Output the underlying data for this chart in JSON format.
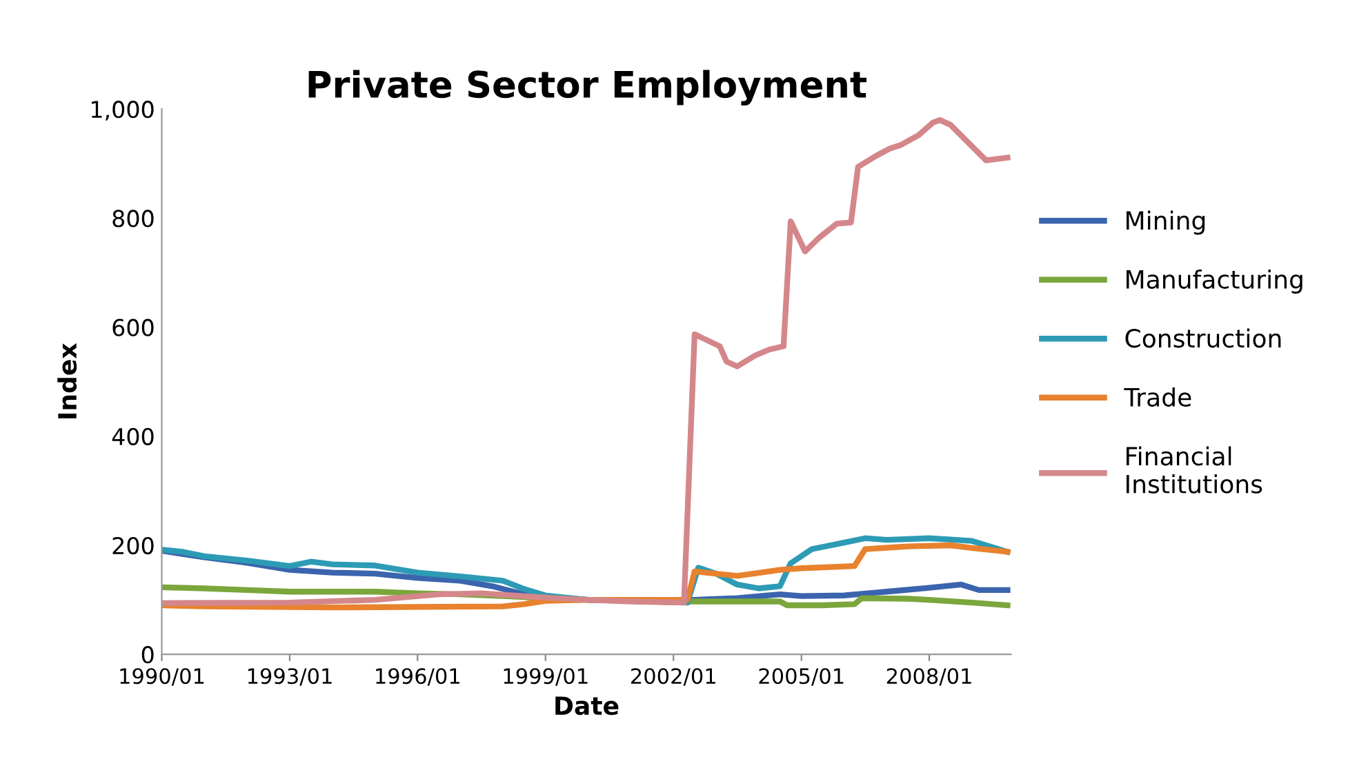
{
  "chart_data": {
    "type": "line",
    "title": "Private Sector Employment",
    "xlabel": "Date",
    "ylabel": "Index",
    "xlim": [
      "1990-01",
      "2009-12"
    ],
    "xticks": [
      {
        "value": "1990-01",
        "label": "1990/01"
      },
      {
        "value": "1993-01",
        "label": "1993/01"
      },
      {
        "value": "1996-01",
        "label": "1996/01"
      },
      {
        "value": "1999-01",
        "label": "1999/01"
      },
      {
        "value": "2002-01",
        "label": "2002/01"
      },
      {
        "value": "2005-01",
        "label": "2005/01"
      },
      {
        "value": "2008-01",
        "label": "2008/01"
      }
    ],
    "ylim": [
      0,
      1000
    ],
    "yticks": [
      0,
      200,
      400,
      600,
      800,
      {
        "value": 1000,
        "label": "1,000"
      }
    ],
    "grid": false,
    "legend": "right",
    "marker": "none",
    "line_style": "solid",
    "series": [
      {
        "name": "Mining",
        "color": "#3a64ad",
        "x": [
          "1990-01",
          "1991-01",
          "1992-01",
          "1993-01",
          "1994-01",
          "1995-01",
          "1996-01",
          "1997-01",
          "1997-10",
          "1998-07",
          "1999-01",
          "2000-01",
          "2002-07",
          "2003-07",
          "2004-07",
          "2005-01",
          "2006-01",
          "2007-01",
          "2008-01",
          "2008-10",
          "2009-03",
          "2009-11"
        ],
        "values": [
          190,
          178,
          168,
          155,
          150,
          148,
          140,
          135,
          125,
          110,
          105,
          100,
          100,
          103,
          110,
          107,
          108,
          115,
          122,
          128,
          118,
          118
        ]
      },
      {
        "name": "Manufacturing",
        "color": "#7aa63c",
        "x": [
          "1990-01",
          "1991-01",
          "1992-01",
          "1993-01",
          "1994-01",
          "1995-01",
          "1996-01",
          "1997-01",
          "1998-01",
          "1999-01",
          "2000-01",
          "2002-01",
          "2004-07",
          "2004-09",
          "2005-07",
          "2006-04",
          "2006-06",
          "2007-07",
          "2008-01",
          "2009-01",
          "2009-11"
        ],
        "values": [
          123,
          121,
          118,
          115,
          115,
          115,
          112,
          110,
          107,
          103,
          100,
          97,
          97,
          90,
          90,
          92,
          103,
          102,
          100,
          95,
          90
        ]
      },
      {
        "name": "Construction",
        "color": "#2d9bb5",
        "x": [
          "1990-01",
          "1990-07",
          "1991-01",
          "1992-01",
          "1993-01",
          "1993-07",
          "1994-01",
          "1995-01",
          "1996-01",
          "1997-01",
          "1998-01",
          "1998-07",
          "1999-01",
          "2000-01",
          "2002-05",
          "2002-08",
          "2003-01",
          "2003-07",
          "2004-01",
          "2004-07",
          "2004-10",
          "2005-04",
          "2006-01",
          "2006-07",
          "2007-01",
          "2008-01",
          "2009-01",
          "2009-11"
        ],
        "values": [
          192,
          188,
          180,
          172,
          162,
          170,
          165,
          163,
          150,
          143,
          135,
          120,
          108,
          100,
          95,
          159,
          148,
          128,
          121,
          125,
          167,
          193,
          205,
          213,
          210,
          213,
          208,
          188
        ]
      },
      {
        "name": "Trade",
        "color": "#e8822e",
        "x": [
          "1990-01",
          "1991-01",
          "1994-01",
          "1998-01",
          "1998-07",
          "1999-01",
          "2000-01",
          "2002-05",
          "2002-07",
          "2003-07",
          "2004-07",
          "2005-01",
          "2006-04",
          "2006-07",
          "2007-07",
          "2008-07",
          "2009-01",
          "2009-11"
        ],
        "values": [
          90,
          88,
          86,
          88,
          92,
          98,
          100,
          100,
          152,
          144,
          155,
          158,
          162,
          193,
          198,
          200,
          195,
          188
        ]
      },
      {
        "name": "Financial Institutions",
        "color": "#d4878a",
        "x": [
          "1990-01",
          "1993-01",
          "1995-01",
          "1996-07",
          "1997-07",
          "1999-01",
          "2000-01",
          "2001-01",
          "2002-04",
          "2002-07",
          "2003-02",
          "2003-04",
          "2003-07",
          "2003-12",
          "2004-04",
          "2004-08",
          "2004-10",
          "2005-02",
          "2005-06",
          "2005-11",
          "2006-03",
          "2006-05",
          "2006-10",
          "2007-02",
          "2007-05",
          "2007-10",
          "2008-02",
          "2008-04",
          "2008-07",
          "2009-02",
          "2009-05",
          "2009-11"
        ],
        "values": [
          94,
          95,
          100,
          110,
          112,
          104,
          100,
          97,
          95,
          587,
          565,
          537,
          528,
          548,
          559,
          565,
          794,
          739,
          764,
          790,
          792,
          894,
          914,
          928,
          934,
          952,
          975,
          980,
          971,
          925,
          906,
          911
        ]
      }
    ]
  }
}
